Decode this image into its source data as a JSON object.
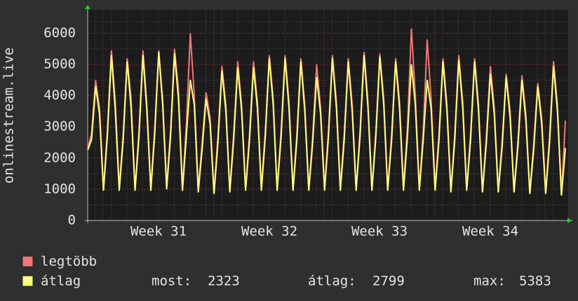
{
  "chart_data": {
    "type": "line",
    "y_label": "onlinestream.live",
    "x_labels": [
      "Week 31",
      "Week 32",
      "Week 33",
      "Week 34"
    ],
    "ylim": [
      0,
      6750
    ],
    "yticks": [
      0,
      1000,
      2000,
      3000,
      4000,
      5000,
      6000
    ],
    "grid": true,
    "series": [
      {
        "name": "legtöbb",
        "color": "#f07878",
        "values": [
          2300,
          2800,
          4500,
          3600,
          1000,
          2900,
          5450,
          3800,
          1050,
          2800,
          5200,
          3900,
          1000,
          2900,
          5450,
          3700,
          1050,
          3000,
          5450,
          3900,
          1100,
          2900,
          5500,
          4200,
          1050,
          3100,
          6000,
          4000,
          1000,
          2500,
          4100,
          3300,
          900,
          2700,
          4950,
          3700,
          1000,
          2800,
          5100,
          3700,
          1000,
          2800,
          5100,
          3800,
          1050,
          2900,
          5300,
          3900,
          1000,
          2900,
          5300,
          3800,
          1000,
          2800,
          5200,
          3700,
          1000,
          2700,
          5000,
          3600,
          1000,
          2900,
          5300,
          3800,
          1050,
          2800,
          5200,
          3700,
          1000,
          2900,
          5400,
          3800,
          1000,
          2900,
          5350,
          3900,
          1000,
          2800,
          5200,
          3800,
          1050,
          3000,
          6150,
          4000,
          1000,
          2900,
          5800,
          3900,
          1000,
          2800,
          5200,
          3700,
          950,
          2800,
          5300,
          3800,
          1000,
          2800,
          5200,
          3700,
          950,
          2700,
          4950,
          3600,
          950,
          2600,
          4700,
          3500,
          950,
          2600,
          4650,
          3400,
          900,
          2500,
          4400,
          3300,
          900,
          2700,
          5100,
          3700,
          850,
          3200
        ]
      },
      {
        "name": "átlag",
        "color": "#ffff80",
        "values": [
          2250,
          2600,
          4300,
          3400,
          950,
          2700,
          5300,
          3500,
          950,
          2600,
          5100,
          3600,
          950,
          2700,
          5300,
          3500,
          950,
          2800,
          5400,
          3700,
          1000,
          2700,
          5350,
          3900,
          950,
          2700,
          4500,
          3700,
          900,
          2300,
          3900,
          3100,
          850,
          2500,
          4800,
          3500,
          900,
          2600,
          4900,
          3500,
          950,
          2600,
          4900,
          3600,
          950,
          2700,
          5200,
          3700,
          950,
          2700,
          5200,
          3600,
          950,
          2600,
          5100,
          3500,
          950,
          2500,
          4600,
          3400,
          950,
          2700,
          5200,
          3600,
          950,
          2600,
          5100,
          3500,
          950,
          2700,
          5300,
          3600,
          950,
          2700,
          5250,
          3700,
          950,
          2600,
          5100,
          3600,
          950,
          2700,
          5000,
          3700,
          950,
          2600,
          4500,
          3600,
          950,
          2600,
          5100,
          3500,
          900,
          2600,
          5150,
          3600,
          950,
          2600,
          5100,
          3500,
          900,
          2500,
          4700,
          3400,
          900,
          2400,
          4600,
          3300,
          900,
          2400,
          4500,
          3200,
          850,
          2300,
          4300,
          3100,
          850,
          2500,
          4950,
          3500,
          800,
          2323
        ]
      }
    ],
    "stats": [
      {
        "label": "most:",
        "value": 2323
      },
      {
        "label": "átlag:",
        "value": 2799
      },
      {
        "label": "max:",
        "value": 5383
      }
    ]
  }
}
